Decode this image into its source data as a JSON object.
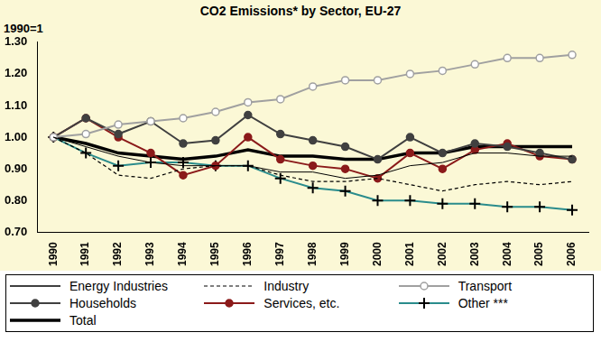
{
  "chart_data": {
    "type": "line",
    "title": "CO2 Emissions* by Sector, EU-27",
    "y_label": "1990=1",
    "categories": [
      "1990",
      "1991",
      "1992",
      "1993",
      "1994",
      "1995",
      "1996",
      "1997",
      "1998",
      "1999",
      "2000",
      "2001",
      "2002",
      "2003",
      "2004",
      "2005",
      "2006"
    ],
    "ylim": [
      0.7,
      1.3
    ],
    "yticks": [
      {
        "value": 0.7,
        "label": "0.70"
      },
      {
        "value": 0.8,
        "label": "0.80"
      },
      {
        "value": 0.9,
        "label": "0.90"
      },
      {
        "value": 1.0,
        "label": "1.00"
      },
      {
        "value": 1.1,
        "label": "1.10"
      },
      {
        "value": 1.2,
        "label": "1.20"
      },
      {
        "value": 1.3,
        "label": "1.30"
      }
    ],
    "grid": false,
    "legend": "bottom",
    "series": [
      {
        "name": "Energy Industries",
        "color": "#000000",
        "marker": "none",
        "line_style": "solid",
        "values": [
          1.0,
          0.97,
          0.94,
          0.92,
          0.91,
          0.91,
          0.91,
          0.89,
          0.89,
          0.87,
          0.88,
          0.91,
          0.92,
          0.95,
          0.95,
          0.94,
          0.94
        ]
      },
      {
        "name": "Industry",
        "color": "#000000",
        "marker": "none",
        "line_style": "dashed",
        "values": [
          1.0,
          0.95,
          0.88,
          0.87,
          0.9,
          0.91,
          0.91,
          0.88,
          0.86,
          0.86,
          0.87,
          0.85,
          0.83,
          0.85,
          0.86,
          0.85,
          0.86
        ]
      },
      {
        "name": "Transport",
        "color": "#a0a0a0",
        "marker": "circle_open",
        "line_style": "solid",
        "values": [
          1.0,
          1.01,
          1.04,
          1.05,
          1.06,
          1.08,
          1.11,
          1.12,
          1.16,
          1.18,
          1.18,
          1.2,
          1.21,
          1.23,
          1.25,
          1.25,
          1.26
        ]
      },
      {
        "name": "Households",
        "color": "#404040",
        "marker": "circle",
        "line_style": "solid",
        "values": [
          1.0,
          1.06,
          1.01,
          1.05,
          0.98,
          0.99,
          1.07,
          1.01,
          0.99,
          0.97,
          0.93,
          1.0,
          0.95,
          0.98,
          0.97,
          0.95,
          0.93
        ]
      },
      {
        "name": "Services, etc.",
        "color": "#8b1a1a",
        "marker": "circle",
        "line_style": "solid",
        "values": [
          1.0,
          1.06,
          1.0,
          0.95,
          0.88,
          0.91,
          1.0,
          0.93,
          0.91,
          0.9,
          0.87,
          0.95,
          0.9,
          0.96,
          0.98,
          0.94,
          0.93
        ]
      },
      {
        "name": "Other ***",
        "color": "#2a8c8c",
        "marker": "plus",
        "line_style": "solid",
        "values": [
          1.0,
          0.95,
          0.91,
          0.92,
          0.92,
          0.91,
          0.91,
          0.87,
          0.84,
          0.83,
          0.8,
          0.8,
          0.79,
          0.79,
          0.78,
          0.78,
          0.77
        ]
      },
      {
        "name": "Total",
        "color": "#000000",
        "marker": "none",
        "line_style": "thick",
        "values": [
          1.0,
          0.98,
          0.95,
          0.94,
          0.93,
          0.94,
          0.96,
          0.94,
          0.94,
          0.93,
          0.93,
          0.95,
          0.95,
          0.97,
          0.97,
          0.97,
          0.97
        ]
      }
    ]
  }
}
